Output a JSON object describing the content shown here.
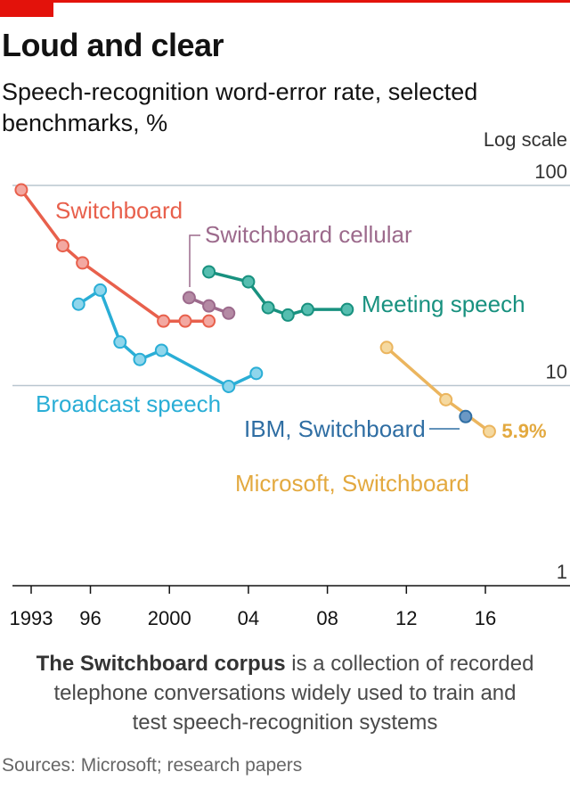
{
  "header": {
    "title": "Loud and clear",
    "subtitle": "Speech-recognition word-error rate, selected benchmarks, %"
  },
  "chart_data": {
    "type": "line",
    "y_scale": "log",
    "scale_note": "Log scale",
    "ylim": [
      1,
      100
    ],
    "y_ticks": [
      {
        "value": 100,
        "label": "100"
      },
      {
        "value": 10,
        "label": "10"
      },
      {
        "value": 1,
        "label": "1"
      }
    ],
    "xlim": [
      1991.5,
      2019.5
    ],
    "x_ticks": [
      {
        "value": 1993,
        "label": "1993"
      },
      {
        "value": 1996,
        "label": "96"
      },
      {
        "value": 2000,
        "label": "2000"
      },
      {
        "value": 2004,
        "label": "04"
      },
      {
        "value": 2008,
        "label": "08"
      },
      {
        "value": 2012,
        "label": "12"
      },
      {
        "value": 2016,
        "label": "16"
      }
    ],
    "series": [
      {
        "name": "Switchboard",
        "color": "#e8604c",
        "fill": "#f3a8a1",
        "points": [
          [
            1992.5,
            95
          ],
          [
            1994.6,
            50
          ],
          [
            1995.6,
            41
          ],
          [
            1999.7,
            21
          ],
          [
            2000.8,
            21
          ],
          [
            2002,
            21
          ]
        ]
      },
      {
        "name": "Switchboard cellular",
        "color": "#9c6a8c",
        "fill": "#b48aa4",
        "points": [
          [
            2001,
            27.5
          ],
          [
            2002,
            25
          ],
          [
            2003,
            23
          ]
        ]
      },
      {
        "name": "Meeting speech",
        "color": "#18917f",
        "fill": "#56beb0",
        "points": [
          [
            2002,
            37
          ],
          [
            2004,
            33
          ],
          [
            2005,
            24.5
          ],
          [
            2006,
            22.5
          ],
          [
            2007,
            24
          ],
          [
            2009,
            24
          ]
        ]
      },
      {
        "name": "Broadcast speech",
        "color": "#2aaed6",
        "fill": "#8fd6ec",
        "points": [
          [
            1995.4,
            25.5
          ],
          [
            1996.5,
            30
          ],
          [
            1997.5,
            16.5
          ],
          [
            1998.5,
            13.5
          ],
          [
            1999.6,
            15
          ],
          [
            2003,
            9.9
          ],
          [
            2004.4,
            11.5
          ]
        ]
      },
      {
        "name": "IBM, Switchboard",
        "color": "#2f6ea3",
        "fill": "#6b98c4",
        "points": [
          [
            2015,
            7
          ]
        ]
      },
      {
        "name": "Microsoft, Switchboard",
        "color": "#ebb55e",
        "fill": "#f5d9a0",
        "points": [
          [
            2011,
            15.5
          ],
          [
            2014,
            8.5
          ],
          [
            2016.2,
            5.9
          ]
        ]
      }
    ],
    "annotations": [
      {
        "series": "Microsoft, Switchboard",
        "text": "5.9%",
        "value": 5.9,
        "year": 2016.2
      }
    ]
  },
  "footer": {
    "note_bold": "The Switchboard corpus",
    "note_rest": " is a collection of recorded telephone conversations widely used to train and test speech-recognition systems",
    "source": "Sources: Microsoft; research papers"
  }
}
